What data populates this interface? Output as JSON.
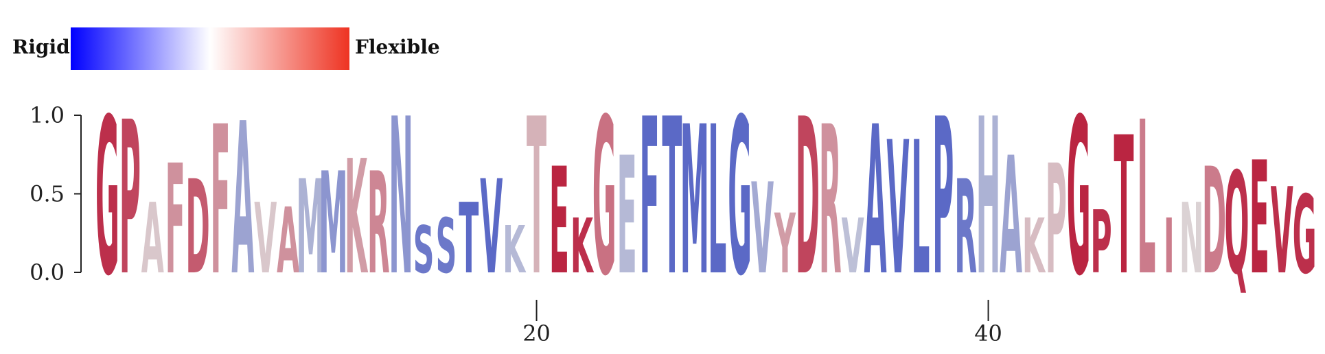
{
  "legend": {
    "left_label": "Rigid",
    "right_label": "Flexible",
    "gradient_colors": [
      "#0000ff",
      "#ffffff",
      "#ee3322"
    ]
  },
  "chart_data": {
    "type": "sequence-logo",
    "sequence": "GPAFDFAVAMMKRNSSTVKTEKGEFTMLGVYDRVAVLPRHAKPGPTLINDQEVG",
    "heights": [
      1.0,
      0.98,
      0.45,
      0.7,
      0.6,
      0.95,
      0.97,
      0.45,
      0.42,
      0.6,
      0.65,
      0.73,
      0.65,
      1.0,
      0.3,
      0.35,
      0.45,
      0.6,
      0.3,
      1.0,
      0.68,
      0.35,
      1.0,
      0.75,
      1.0,
      1.0,
      0.95,
      0.95,
      1.0,
      0.58,
      0.38,
      1.0,
      0.95,
      0.35,
      0.95,
      0.85,
      0.85,
      1.0,
      0.6,
      1.0,
      0.75,
      0.35,
      0.7,
      1.0,
      0.4,
      0.88,
      0.98,
      0.35,
      0.45,
      0.68,
      0.65,
      0.72,
      0.55,
      0.5
    ],
    "flexibility": [
      0.8,
      0.7,
      0.1,
      0.35,
      0.6,
      0.35,
      -0.4,
      0.1,
      0.35,
      -0.3,
      -0.5,
      0.3,
      0.4,
      -0.5,
      -0.7,
      -0.7,
      -0.8,
      -0.8,
      -0.25,
      0.2,
      0.85,
      0.8,
      0.5,
      -0.25,
      -0.8,
      -0.8,
      -0.8,
      -0.8,
      -0.8,
      -0.35,
      0.3,
      0.7,
      0.35,
      -0.2,
      -0.8,
      -0.8,
      -0.8,
      -0.8,
      -0.7,
      -0.3,
      -0.4,
      0.15,
      0.15,
      0.85,
      0.8,
      0.85,
      0.45,
      0.45,
      0.05,
      0.45,
      0.8,
      0.85,
      0.8,
      0.8
    ],
    "y_ticks": [
      "0.0",
      "0.5",
      "1.0"
    ],
    "ylim": [
      0,
      1
    ],
    "x_ticks": [
      {
        "position": 20,
        "label": "20"
      },
      {
        "position": 40,
        "label": "40"
      }
    ]
  }
}
